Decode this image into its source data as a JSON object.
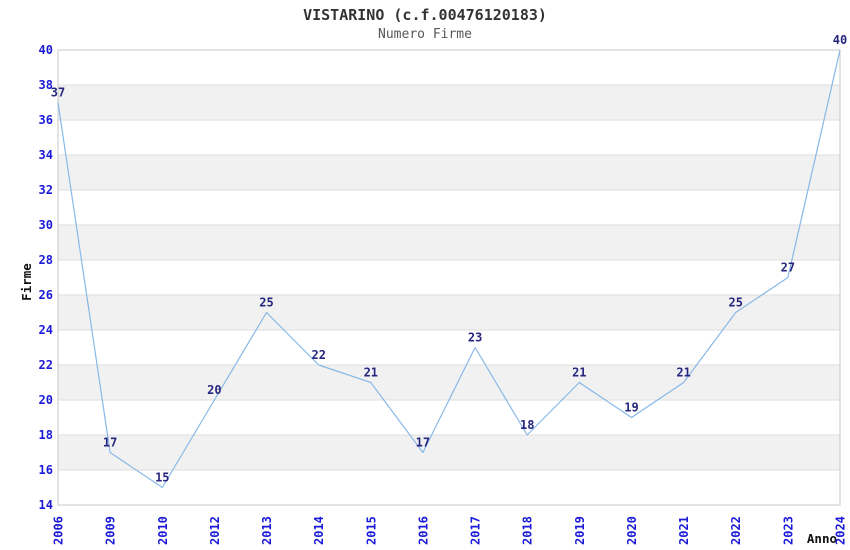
{
  "header": {
    "title": "VISTARINO (c.f.00476120183)",
    "subtitle": "Numero Firme"
  },
  "chart_data": {
    "type": "line",
    "title": "VISTARINO (c.f.00476120183)",
    "subtitle": "Numero Firme",
    "xlabel": "Anno",
    "ylabel": "Firme",
    "categories": [
      "2006",
      "2009",
      "2010",
      "2012",
      "2013",
      "2014",
      "2015",
      "2016",
      "2017",
      "2018",
      "2019",
      "2020",
      "2021",
      "2022",
      "2023",
      "2024"
    ],
    "values": [
      37,
      17,
      15,
      20,
      25,
      22,
      21,
      17,
      23,
      18,
      21,
      19,
      21,
      25,
      27,
      40
    ],
    "ylim": [
      14,
      40
    ],
    "ytick_step": 2,
    "grid": true,
    "legend": "none",
    "colors": {
      "line": "#88b8e8",
      "tick_label": "#1a1ad8",
      "data_label": "#26267f",
      "band_fill": "#f1f1f1",
      "grid_line": "#dedede",
      "plot_border": "#c8c8c8",
      "title": "#333333",
      "subtitle": "#585858",
      "axis_title": "#111111"
    }
  }
}
